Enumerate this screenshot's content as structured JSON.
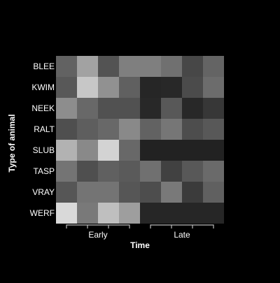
{
  "chart_data": {
    "type": "heatmap",
    "title": "",
    "xlabel": "Time",
    "ylabel": "Type of animal",
    "rows": [
      "BLEE",
      "KWIM",
      "NEEK",
      "RALT",
      "SLUB",
      "TASP",
      "VRAY",
      "WERF"
    ],
    "column_count": 8,
    "column_groups": [
      {
        "label": "Early",
        "columns": [
          0,
          1,
          2,
          3
        ]
      },
      {
        "label": "Late",
        "columns": [
          4,
          5,
          6,
          7
        ]
      }
    ],
    "color_scale": {
      "low": "#222222",
      "high": "#f0f0f0",
      "domain": [
        0,
        1
      ]
    },
    "values": [
      [
        0.31,
        0.62,
        0.24,
        0.45,
        0.45,
        0.38,
        0.18,
        0.32
      ],
      [
        0.26,
        0.8,
        0.54,
        0.3,
        0.02,
        0.03,
        0.2,
        0.36
      ],
      [
        0.52,
        0.34,
        0.23,
        0.23,
        0.03,
        0.26,
        0.03,
        0.1
      ],
      [
        0.22,
        0.29,
        0.34,
        0.5,
        0.31,
        0.41,
        0.21,
        0.26
      ],
      [
        0.7,
        0.5,
        0.86,
        0.34,
        0.0,
        0.0,
        0.0,
        0.0
      ],
      [
        0.4,
        0.22,
        0.3,
        0.27,
        0.38,
        0.15,
        0.26,
        0.35
      ],
      [
        0.25,
        0.4,
        0.4,
        0.25,
        0.21,
        0.42,
        0.12,
        0.3
      ],
      [
        0.89,
        0.42,
        0.76,
        0.6,
        0.02,
        0.02,
        0.02,
        0.02
      ]
    ]
  }
}
